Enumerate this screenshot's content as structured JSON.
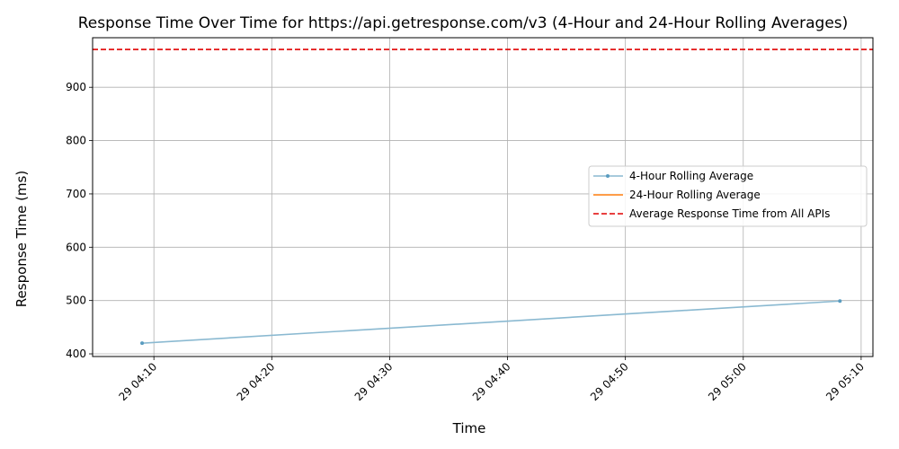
{
  "chart_data": {
    "type": "line",
    "title": "Response Time Over Time for https://api.getresponse.com/v3 (4-Hour and 24-Hour Rolling Averages)",
    "xlabel": "Time",
    "ylabel": "Response Time (ms)",
    "x_ticks": [
      "29 04:10",
      "29 04:20",
      "29 04:30",
      "29 04:40",
      "29 04:50",
      "29 05:00",
      "29 05:10"
    ],
    "x_tick_minutes": [
      250,
      260,
      270,
      280,
      290,
      300,
      310
    ],
    "xlim_minutes": [
      244.8,
      311
    ],
    "y_ticks": [
      400,
      500,
      600,
      700,
      800,
      900
    ],
    "ylim": [
      395,
      993
    ],
    "grid": true,
    "series": [
      {
        "name": "4-Hour Rolling Average",
        "color": "#8ab9d1",
        "marker": "dot",
        "x_minutes": [
          249.0,
          308.2
        ],
        "values": [
          420,
          499
        ]
      },
      {
        "name": "24-Hour Rolling Average",
        "color": "#ff7f0e",
        "marker": "none",
        "x_minutes": [],
        "values": []
      }
    ],
    "reference_line": {
      "name": "Average Response Time from All APIs",
      "value": 971,
      "color": "#e00000",
      "style": "dashed"
    },
    "legend_position": "center-right"
  }
}
